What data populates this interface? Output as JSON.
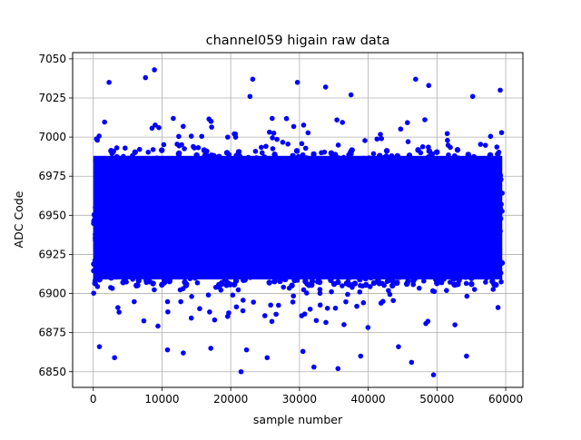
{
  "chart_data": {
    "type": "scatter",
    "title": "channel059 higain raw data",
    "xlabel": "sample number",
    "ylabel": "ADC Code",
    "xlim": [
      -3000,
      62500
    ],
    "ylim": [
      6840,
      7054
    ],
    "xticks": [
      0,
      10000,
      20000,
      30000,
      40000,
      50000,
      60000
    ],
    "xtick_labels": [
      "0",
      "10000",
      "20000",
      "30000",
      "40000",
      "50000",
      "60000"
    ],
    "yticks": [
      6850,
      6875,
      6900,
      6925,
      6950,
      6975,
      7000,
      7025,
      7050
    ],
    "ytick_labels": [
      "6850",
      "6875",
      "6900",
      "6925",
      "6950",
      "6975",
      "7000",
      "7025",
      "7050"
    ],
    "grid": true,
    "marker_color": "#0000ff",
    "series": [
      {
        "name": "",
        "n_samples": 59500,
        "dense_band": [
          6905,
          6992
        ],
        "scatter_band": [
          6878,
          7012
        ],
        "outliers": [
          {
            "x": 2300,
            "y": 7035
          },
          {
            "x": 7600,
            "y": 7038
          },
          {
            "x": 8900,
            "y": 7043
          },
          {
            "x": 23200,
            "y": 7037
          },
          {
            "x": 22800,
            "y": 7026
          },
          {
            "x": 29700,
            "y": 7035
          },
          {
            "x": 33800,
            "y": 7032
          },
          {
            "x": 37500,
            "y": 7027
          },
          {
            "x": 46900,
            "y": 7037
          },
          {
            "x": 48800,
            "y": 7033
          },
          {
            "x": 55200,
            "y": 7026
          },
          {
            "x": 59200,
            "y": 7030
          },
          {
            "x": 21500,
            "y": 6850
          },
          {
            "x": 49500,
            "y": 6848
          },
          {
            "x": 32100,
            "y": 6853
          },
          {
            "x": 35600,
            "y": 6852
          },
          {
            "x": 46300,
            "y": 6856
          },
          {
            "x": 3100,
            "y": 6859
          },
          {
            "x": 25300,
            "y": 6859
          },
          {
            "x": 38900,
            "y": 6860
          },
          {
            "x": 54300,
            "y": 6860
          },
          {
            "x": 10800,
            "y": 6864
          },
          {
            "x": 17100,
            "y": 6865
          },
          {
            "x": 22300,
            "y": 6864
          },
          {
            "x": 900,
            "y": 6866
          },
          {
            "x": 30500,
            "y": 6863
          },
          {
            "x": 44400,
            "y": 6866
          },
          {
            "x": 13100,
            "y": 6862
          }
        ]
      }
    ]
  }
}
